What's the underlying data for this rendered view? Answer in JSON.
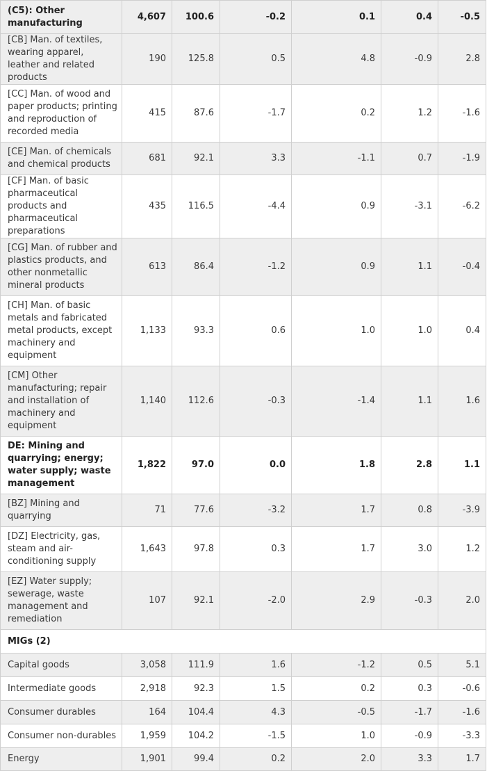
{
  "rows": [
    {
      "label": "(C5): Other manufacturing",
      "v": [
        "4,607",
        "100.6",
        "-0.2",
        "0.1",
        "0.4",
        "-0.5"
      ]
    },
    {
      "label": "[CB] Man. of textiles, wearing apparel, leather and related products",
      "v": [
        "190",
        "125.8",
        "0.5",
        "4.8",
        "-0.9",
        "2.8"
      ]
    },
    {
      "label": "[CC] Man. of wood and paper products; printing and reproduction of recorded media",
      "v": [
        "415",
        "87.6",
        "-1.7",
        "0.2",
        "1.2",
        "-1.6"
      ]
    },
    {
      "label": "[CE] Man. of chemicals and chemical products",
      "v": [
        "681",
        "92.1",
        "3.3",
        "-1.1",
        "0.7",
        "-1.9"
      ]
    },
    {
      "label": "[CF] Man. of basic pharmaceutical products and pharmaceutical preparations",
      "v": [
        "435",
        "116.5",
        "-4.4",
        "0.9",
        "-3.1",
        "-6.2"
      ]
    },
    {
      "label": "[CG] Man. of rubber and plastics products, and other nonmetallic mineral products",
      "v": [
        "613",
        "86.4",
        "-1.2",
        "0.9",
        "1.1",
        "-0.4"
      ]
    },
    {
      "label": "[CH] Man. of basic metals and fabricated metal products, except machinery and equipment",
      "v": [
        "1,133",
        "93.3",
        "0.6",
        "1.0",
        "1.0",
        "0.4"
      ]
    },
    {
      "label": "[CM] Other manufacturing; repair and installation of machinery and equipment",
      "v": [
        "1,140",
        "112.6",
        "-0.3",
        "-1.4",
        "1.1",
        "1.6"
      ]
    },
    {
      "label": "DE: Mining and quarrying; energy; water supply; waste management",
      "v": [
        "1,822",
        "97.0",
        "0.0",
        "1.8",
        "2.8",
        "1.1"
      ]
    },
    {
      "label": "[BZ] Mining and quarrying",
      "v": [
        "71",
        "77.6",
        "-3.2",
        "1.7",
        "0.8",
        "-3.9"
      ]
    },
    {
      "label": "[DZ] Electricity, gas, steam and air-conditioning supply",
      "v": [
        "1,643",
        "97.8",
        "0.3",
        "1.7",
        "3.0",
        "1.2"
      ]
    },
    {
      "label": "[EZ] Water supply; sewerage, waste management and remediation",
      "v": [
        "107",
        "92.1",
        "-2.0",
        "2.9",
        "-0.3",
        "2.0"
      ]
    },
    {
      "label": "MIGs (2)"
    },
    {
      "label": "Capital goods",
      "v": [
        "3,058",
        "111.9",
        "1.6",
        "-1.2",
        "0.5",
        "5.1"
      ]
    },
    {
      "label": "Intermediate goods",
      "v": [
        "2,918",
        "92.3",
        "1.5",
        "0.2",
        "0.3",
        "-0.6"
      ]
    },
    {
      "label": "Consumer durables",
      "v": [
        "164",
        "104.4",
        "4.3",
        "-0.5",
        "-1.7",
        "-1.6"
      ]
    },
    {
      "label": "Consumer non-durables",
      "v": [
        "1,959",
        "104.2",
        "-1.5",
        "1.0",
        "-0.9",
        "-3.3"
      ]
    },
    {
      "label": "Energy",
      "v": [
        "1,901",
        "99.4",
        "0.2",
        "2.0",
        "3.3",
        "1.7"
      ]
    }
  ]
}
